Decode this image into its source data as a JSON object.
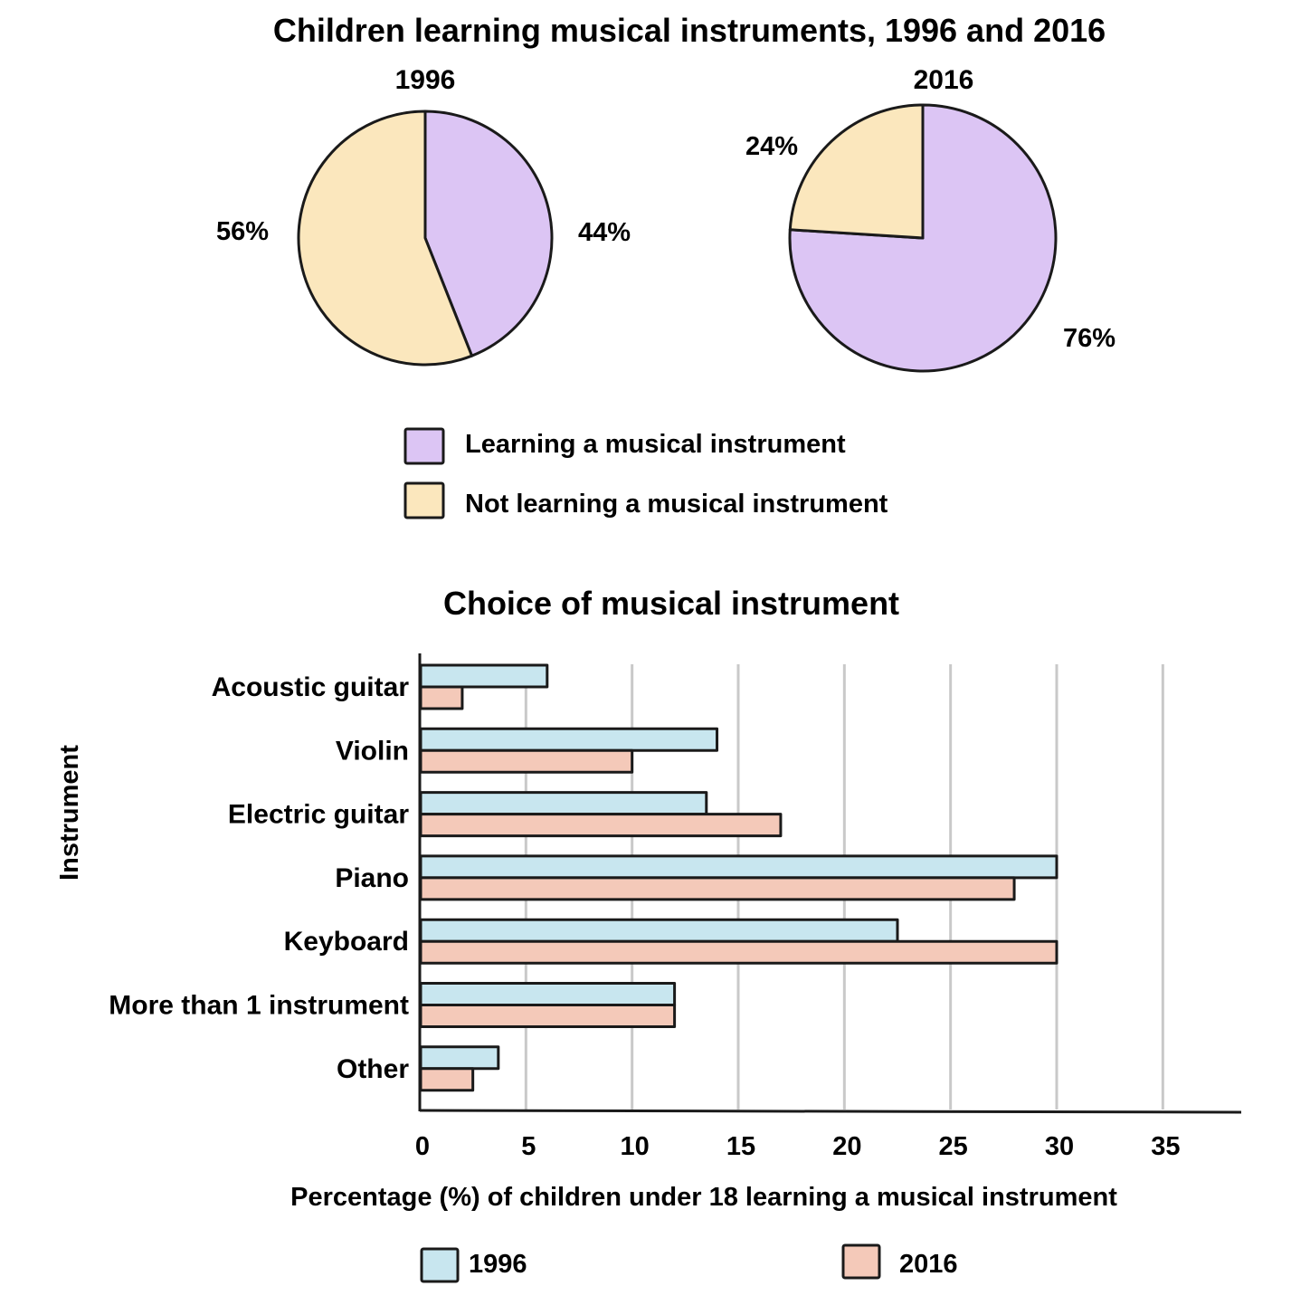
{
  "chart_data": [
    {
      "type": "pie",
      "title": "Children learning musical instruments, 1996 and 2016",
      "pies": [
        {
          "label": "1996",
          "slices": [
            {
              "name": "Learning a musical instrument",
              "value": 44,
              "label": "44%",
              "color": "#dcc5f4"
            },
            {
              "name": "Not learning a musical instrument",
              "value": 56,
              "label": "56%",
              "color": "#fbe7bd"
            }
          ]
        },
        {
          "label": "2016",
          "slices": [
            {
              "name": "Learning a musical instrument",
              "value": 76,
              "label": "76%",
              "color": "#dcc5f4"
            },
            {
              "name": "Not learning a musical instrument",
              "value": 24,
              "label": "24%",
              "color": "#fbe7bd"
            }
          ]
        }
      ],
      "legend": [
        {
          "label": "Learning a musical instrument",
          "color": "#dcc5f4"
        },
        {
          "label": "Not learning a musical instrument",
          "color": "#fbe7bd"
        }
      ]
    },
    {
      "type": "bar",
      "orientation": "horizontal",
      "title": "Choice of musical instrument",
      "xlabel": "Percentage (%) of children under 18 learning a musical instrument",
      "ylabel": "Instrument",
      "xlim": [
        0,
        35
      ],
      "xticks": [
        "0",
        "5",
        "10",
        "15",
        "20",
        "25",
        "30",
        "35"
      ],
      "grid": true,
      "categories": [
        "Acoustic guitar",
        "Violin",
        "Electric guitar",
        "Piano",
        "Keyboard",
        "More than 1 instrument",
        "Other"
      ],
      "series": [
        {
          "name": "1996",
          "color": "#c8e6ef",
          "values": [
            6,
            14,
            13.5,
            30,
            22.5,
            12,
            3.7
          ]
        },
        {
          "name": "2016",
          "color": "#f4c9b9",
          "values": [
            2,
            10,
            17,
            28,
            30,
            12,
            2.5
          ]
        }
      ],
      "legend": [
        {
          "label": "1996",
          "color": "#c8e6ef"
        },
        {
          "label": "2016",
          "color": "#f4c9b9"
        }
      ]
    }
  ]
}
